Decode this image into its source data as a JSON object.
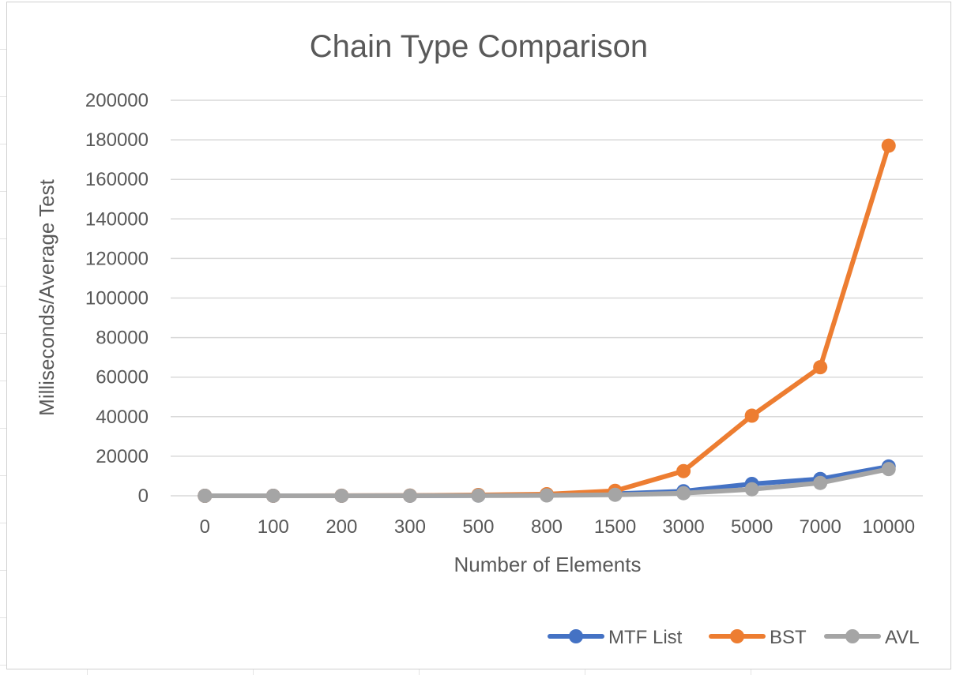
{
  "chart_data": {
    "type": "line",
    "title": "Chain Type Comparison",
    "xlabel": "Number of Elements",
    "ylabel": "Milliseconds/Average Test",
    "categories": [
      "0",
      "100",
      "200",
      "300",
      "500",
      "800",
      "1500",
      "3000",
      "5000",
      "7000",
      "10000"
    ],
    "ylim": [
      0,
      200000
    ],
    "yticks": [
      "0",
      "20000",
      "40000",
      "60000",
      "80000",
      "100000",
      "120000",
      "140000",
      "160000",
      "180000",
      "200000"
    ],
    "grid": true,
    "legend": "bottom-right",
    "series": [
      {
        "name": "MTF List",
        "color": "#4472c4",
        "values": [
          0,
          5,
          20,
          50,
          150,
          400,
          1000,
          2300,
          6000,
          8500,
          14800
        ]
      },
      {
        "name": "BST",
        "color": "#ed7d31",
        "values": [
          0,
          10,
          30,
          100,
          400,
          800,
          2500,
          12500,
          40500,
          65000,
          177000
        ]
      },
      {
        "name": "AVL",
        "color": "#a5a5a5",
        "values": [
          0,
          5,
          10,
          30,
          80,
          200,
          500,
          1300,
          3300,
          6500,
          13500
        ]
      }
    ]
  }
}
